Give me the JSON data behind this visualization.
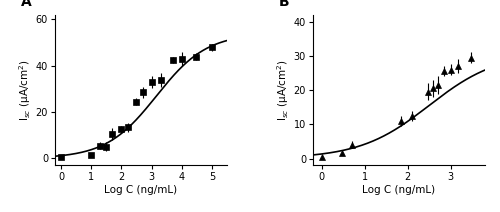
{
  "panel_A": {
    "label": "A",
    "xlabel": "Log C (ng/mL)",
    "ylabel": "I$_{sc}$ (μA/cm$^{2}$)",
    "xlim": [
      -0.2,
      5.5
    ],
    "ylim": [
      -3,
      62
    ],
    "xticks": [
      0,
      1,
      2,
      3,
      4,
      5
    ],
    "yticks": [
      0,
      20,
      40,
      60
    ],
    "ec50_log": 3.163,
    "hill": 0.52,
    "emax": 54.0,
    "emin": 0.0,
    "data_x": [
      0.0,
      1.0,
      1.3,
      1.48,
      1.7,
      2.0,
      2.23,
      2.48,
      2.7,
      3.0,
      3.3,
      3.7,
      4.0,
      4.48,
      5.0
    ],
    "data_y": [
      0.5,
      1.5,
      5.5,
      5.0,
      10.5,
      12.5,
      13.5,
      24.5,
      28.5,
      33.0,
      34.0,
      42.5,
      43.0,
      44.0,
      48.0
    ],
    "data_yerr": [
      0.3,
      0.4,
      1.5,
      2.0,
      2.5,
      1.5,
      2.0,
      1.5,
      2.5,
      2.5,
      3.0,
      1.5,
      3.0,
      1.5,
      1.5
    ],
    "marker": "s"
  },
  "panel_B": {
    "label": "B",
    "xlabel": "Log C (ng/mL)",
    "ylabel": "I$_{sc}$ (μA/cm$^{2}$)",
    "xlim": [
      -0.2,
      3.8
    ],
    "ylim": [
      -2,
      42
    ],
    "xticks": [
      0,
      1,
      2,
      3
    ],
    "yticks": [
      0,
      10,
      20,
      30,
      40
    ],
    "ec50_log": 2.499,
    "hill": 0.54,
    "emax": 31.0,
    "emin": 0.0,
    "data_x": [
      0.0,
      0.48,
      0.7,
      1.85,
      2.1,
      2.48,
      2.6,
      2.7,
      2.85,
      3.0,
      3.18,
      3.48
    ],
    "data_y": [
      0.5,
      1.5,
      4.0,
      11.0,
      12.5,
      19.5,
      20.5,
      21.5,
      25.5,
      26.0,
      27.0,
      29.5
    ],
    "data_yerr": [
      0.3,
      0.4,
      1.0,
      1.5,
      1.5,
      2.5,
      2.5,
      2.5,
      1.5,
      1.5,
      2.0,
      1.5
    ],
    "marker": "^"
  },
  "bg_color": "#ffffff",
  "line_color": "#000000",
  "marker_color": "#000000",
  "marker_size": 4,
  "line_width": 1.2,
  "font_size": 7.5,
  "label_font_size": 10
}
